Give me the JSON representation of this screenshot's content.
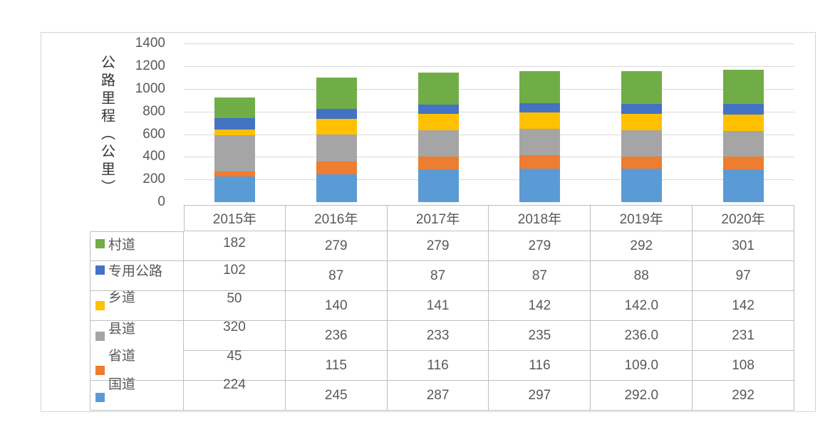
{
  "chart_data": {
    "type": "bar",
    "subtype": "stacked-column",
    "title": "",
    "y_axis_title": "公路里程（公里）",
    "categories": [
      "2015年",
      "2016年",
      "2017年",
      "2018年",
      "2019年",
      "2020年"
    ],
    "y_ticks": [
      0,
      200,
      400,
      600,
      800,
      1000,
      1200,
      1400
    ],
    "ylim": [
      0,
      1400
    ],
    "grid": true,
    "legend_position": "table-left-column",
    "series": [
      {
        "name": "村道",
        "key": "village-road",
        "color": "#70AD47",
        "values": [
          "182",
          "279",
          "279",
          "279",
          "292",
          "301"
        ]
      },
      {
        "name": "专用公路",
        "key": "special-purpose-road",
        "color": "#4472C4",
        "values": [
          "102",
          "87",
          "87",
          "87",
          "88",
          "97"
        ]
      },
      {
        "name": "乡道",
        "key": "township-road",
        "color": "#FFC000",
        "values": [
          "50",
          "140",
          "141",
          "142",
          "142.0",
          "142"
        ]
      },
      {
        "name": "县道",
        "key": "county-road",
        "color": "#A5A5A5",
        "values": [
          "320",
          "236",
          "233",
          "235",
          "236.0",
          "231"
        ]
      },
      {
        "name": "省道",
        "key": "provincial-road",
        "color": "#ED7D31",
        "values": [
          "45",
          "115",
          "116",
          "116",
          "109.0",
          "108"
        ]
      },
      {
        "name": "国道",
        "key": "national-road",
        "color": "#5B9BD5",
        "values": [
          "224",
          "245",
          "287",
          "297",
          "292.0",
          "292"
        ]
      }
    ],
    "colors": {
      "grid_line": "#d9d9d9",
      "table_border": "#bfbfbf",
      "text": "#595959",
      "axis_title_text": "#333333"
    }
  }
}
